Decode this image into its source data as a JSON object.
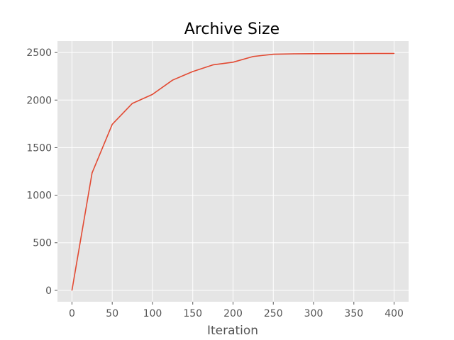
{
  "chart_data": {
    "type": "line",
    "title": "Archive Size",
    "xlabel": "Iteration",
    "ylabel": "",
    "xlim": [
      -18,
      418
    ],
    "ylim": [
      -120,
      2620
    ],
    "xticks": [
      0,
      50,
      100,
      150,
      200,
      250,
      300,
      350,
      400
    ],
    "yticks": [
      0,
      500,
      1000,
      1500,
      2000,
      2500
    ],
    "grid": true,
    "colors": {
      "plot_bg": "#e5e5e5",
      "line": "#e24a33"
    },
    "series": [
      {
        "x": [
          0,
          25,
          50,
          75,
          100,
          125,
          150,
          175,
          200,
          225,
          250,
          275,
          300,
          325,
          350,
          375,
          400
        ],
        "values": [
          0,
          1235,
          1745,
          1965,
          2060,
          2210,
          2300,
          2370,
          2398,
          2458,
          2482,
          2486,
          2487,
          2488,
          2489,
          2490,
          2490
        ]
      }
    ]
  }
}
